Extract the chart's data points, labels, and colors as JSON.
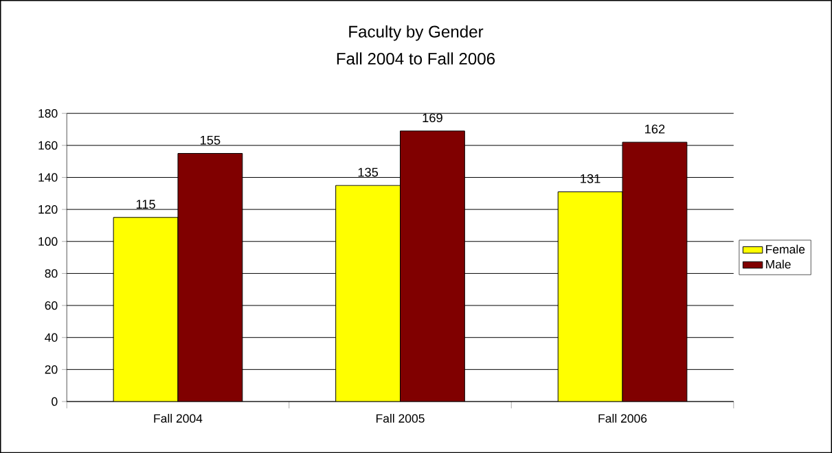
{
  "chart_data": {
    "type": "bar",
    "title": "Faculty by Gender",
    "subtitle": "Fall 2004 to Fall 2006",
    "categories": [
      "Fall 2004",
      "Fall 2005",
      "Fall 2006"
    ],
    "series": [
      {
        "name": "Female",
        "color": "#ffff00",
        "values": [
          115,
          135,
          131
        ]
      },
      {
        "name": "Male",
        "color": "#800000",
        "values": [
          155,
          169,
          162
        ]
      }
    ],
    "ylim": [
      0,
      180
    ],
    "yticks": [
      0,
      20,
      40,
      60,
      80,
      100,
      120,
      140,
      160,
      180
    ],
    "grid": "y",
    "legend": "right",
    "data_labels": true
  }
}
